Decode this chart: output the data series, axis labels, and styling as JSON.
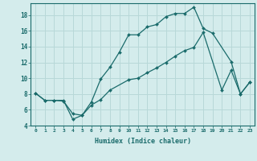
{
  "xlabel": "Humidex (Indice chaleur)",
  "bg_color": "#d4ecec",
  "line_color": "#1a6b6b",
  "grid_color": "#b8d8d8",
  "xlim": [
    -0.5,
    23.5
  ],
  "ylim": [
    4,
    19.5
  ],
  "yticks": [
    4,
    6,
    8,
    10,
    12,
    14,
    16,
    18
  ],
  "xticks": [
    0,
    1,
    2,
    3,
    4,
    5,
    6,
    7,
    8,
    9,
    10,
    11,
    12,
    13,
    14,
    15,
    16,
    17,
    18,
    19,
    20,
    21,
    22,
    23
  ],
  "xtick_labels": [
    "0",
    "1",
    "2",
    "3",
    "4",
    "5",
    "6",
    "7",
    "8",
    "9",
    "10",
    "11",
    "12",
    "13",
    "14",
    "15",
    "16",
    "17",
    "18",
    "19",
    "20",
    "21",
    "22",
    "23"
  ],
  "line2_x": [
    0,
    1,
    2,
    3,
    4,
    5,
    6,
    7,
    8,
    9,
    10,
    11,
    12,
    13,
    14,
    15,
    16,
    17,
    18,
    19,
    21,
    22,
    23
  ],
  "line2_y": [
    8.1,
    7.2,
    7.2,
    7.1,
    5.5,
    5.3,
    7.0,
    9.9,
    11.4,
    13.3,
    15.5,
    15.5,
    16.5,
    16.8,
    17.8,
    18.2,
    18.2,
    19.0,
    16.3,
    15.7,
    12.1,
    8.0,
    9.5
  ],
  "line3_x": [
    0,
    1,
    2,
    3,
    4,
    5,
    6,
    7,
    8,
    10,
    11,
    12,
    13,
    14,
    15,
    16,
    17,
    18,
    20,
    21,
    22,
    23
  ],
  "line3_y": [
    8.1,
    7.2,
    7.2,
    7.2,
    4.8,
    5.3,
    6.6,
    7.3,
    8.5,
    9.8,
    10.0,
    10.7,
    11.3,
    12.0,
    12.8,
    13.5,
    13.9,
    15.8,
    8.5,
    11.0,
    8.0,
    9.5
  ]
}
